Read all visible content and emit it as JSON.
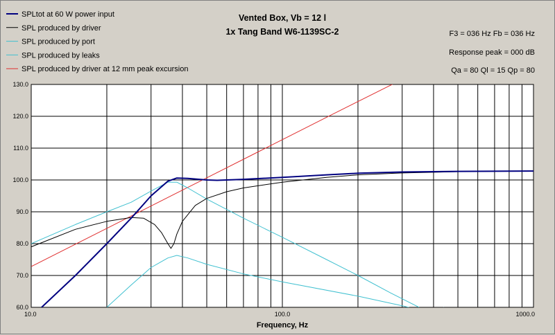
{
  "chart_data": {
    "type": "line",
    "title": [
      "Vented Box, Vb = 12 l",
      "1x Tang Band W6-1139SC-2"
    ],
    "info": [
      "F3 = 036 Hz  Fb = 036 Hz",
      "Response peak = 000 dB",
      "Qa = 80  Ql = 15  Qp = 80"
    ],
    "xlabel": "Frequency, Hz",
    "ylabel": "",
    "x_scale": "log",
    "xlim": [
      10,
      1000
    ],
    "ylim": [
      60,
      130
    ],
    "x_ticks": [
      "10.0",
      "100.0",
      "1000.0"
    ],
    "y_ticks": [
      "60.0",
      "70.0",
      "80.0",
      "90.0",
      "100.0",
      "110.0",
      "120.0",
      "130.0"
    ],
    "grid": true,
    "legend_position": "top-left",
    "series": [
      {
        "name": "SPLtot at 60 W power input",
        "color": "#000080",
        "width": 2,
        "points": [
          [
            11,
            60
          ],
          [
            15,
            70
          ],
          [
            20,
            80
          ],
          [
            25,
            88
          ],
          [
            30,
            95
          ],
          [
            35,
            99.6
          ],
          [
            38,
            100.6
          ],
          [
            42,
            100.5
          ],
          [
            50,
            100
          ],
          [
            55,
            99.9
          ],
          [
            70,
            100.2
          ],
          [
            100,
            100.8
          ],
          [
            150,
            101.6
          ],
          [
            200,
            102.1
          ],
          [
            300,
            102.5
          ],
          [
            500,
            102.7
          ],
          [
            1000,
            102.8
          ]
        ]
      },
      {
        "name": "SPL produced by driver",
        "color": "#000000",
        "width": 1,
        "points": [
          [
            10,
            79
          ],
          [
            15,
            84.5
          ],
          [
            20,
            87
          ],
          [
            25,
            88.2
          ],
          [
            28,
            88
          ],
          [
            31,
            86
          ],
          [
            33,
            83.5
          ],
          [
            35,
            80
          ],
          [
            36,
            78.5
          ],
          [
            37,
            80
          ],
          [
            38,
            83
          ],
          [
            40,
            87
          ],
          [
            45,
            92
          ],
          [
            50,
            94.2
          ],
          [
            60,
            96.3
          ],
          [
            70,
            97.5
          ],
          [
            100,
            99.3
          ],
          [
            150,
            100.8
          ],
          [
            200,
            101.6
          ],
          [
            300,
            102.2
          ],
          [
            500,
            102.6
          ],
          [
            1000,
            102.8
          ]
        ]
      },
      {
        "name": "SPL produced by port",
        "color": "#40c0d0",
        "width": 1,
        "points": [
          [
            10,
            80
          ],
          [
            15,
            86
          ],
          [
            20,
            90
          ],
          [
            25,
            93
          ],
          [
            30,
            96.5
          ],
          [
            35,
            99.3
          ],
          [
            38,
            99.3
          ],
          [
            42,
            97.5
          ],
          [
            50,
            94
          ],
          [
            70,
            88
          ],
          [
            100,
            82
          ],
          [
            150,
            75
          ],
          [
            200,
            70
          ],
          [
            270,
            64.5
          ],
          [
            350,
            60
          ]
        ]
      },
      {
        "name": "SPL produced by leaks",
        "color": "#40c0d0",
        "width": 1,
        "points": [
          [
            20,
            60
          ],
          [
            25,
            67
          ],
          [
            30,
            72.5
          ],
          [
            35,
            75.5
          ],
          [
            38,
            76.3
          ],
          [
            42,
            75.5
          ],
          [
            50,
            73.5
          ],
          [
            70,
            70.5
          ],
          [
            100,
            68
          ],
          [
            200,
            63.5
          ],
          [
            300,
            60.5
          ],
          [
            400,
            58
          ],
          [
            440,
            60
          ]
        ]
      },
      {
        "name": "SPL produced by driver at 12 mm peak excursion",
        "color": "#e03030",
        "width": 1,
        "points": [
          [
            10,
            72.8
          ],
          [
            20,
            84.8
          ],
          [
            40,
            96.8
          ],
          [
            80,
            108.8
          ],
          [
            160,
            120.8
          ],
          [
            290,
            131
          ]
        ]
      }
    ]
  }
}
